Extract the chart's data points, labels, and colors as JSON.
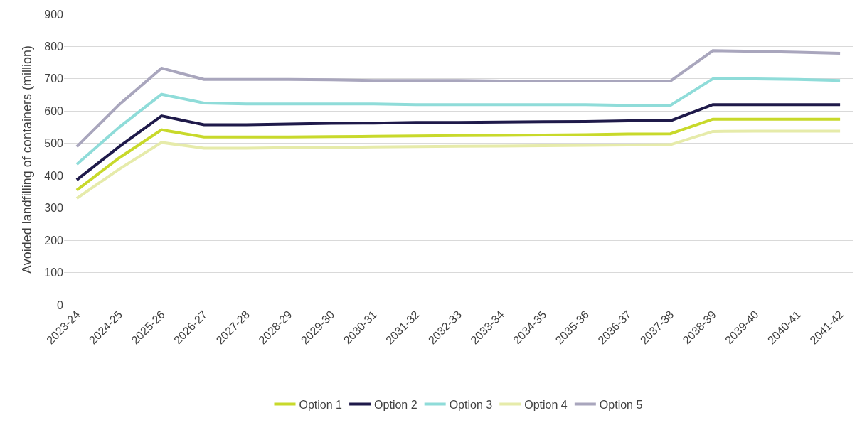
{
  "chart_data": {
    "type": "line",
    "ylabel": "Avoided landfilling of containers (million)",
    "categories": [
      "2023-24",
      "2024-25",
      "2025-26",
      "2026-27",
      "2027-28",
      "2028-29",
      "2029-30",
      "2030-31",
      "2031-32",
      "2032-33",
      "2033-34",
      "2034-35",
      "2035-36",
      "2036-37",
      "2037-38",
      "2038-39",
      "2039-40",
      "2040-41",
      "2041-42"
    ],
    "series": [
      {
        "name": "Option 1",
        "color": "#c8d92b",
        "values": [
          355,
          455,
          542,
          520,
          520,
          520,
          521,
          522,
          523,
          524,
          525,
          526,
          527,
          529,
          530,
          575,
          575,
          575,
          575
        ]
      },
      {
        "name": "Option 2",
        "color": "#1f1a4a",
        "values": [
          387,
          490,
          585,
          558,
          558,
          560,
          562,
          563,
          565,
          565,
          566,
          567,
          568,
          570,
          570,
          620,
          620,
          620,
          620
        ]
      },
      {
        "name": "Option 3",
        "color": "#8fdcd9",
        "values": [
          435,
          550,
          652,
          625,
          622,
          622,
          622,
          622,
          620,
          620,
          620,
          620,
          620,
          618,
          618,
          700,
          700,
          698,
          695
        ]
      },
      {
        "name": "Option 4",
        "color": "#e6ebaa",
        "values": [
          330,
          420,
          503,
          485,
          485,
          487,
          488,
          489,
          490,
          491,
          492,
          493,
          494,
          495,
          496,
          537,
          538,
          538,
          538
        ]
      },
      {
        "name": "Option 5",
        "color": "#a9a6bd",
        "values": [
          490,
          620,
          733,
          698,
          698,
          698,
          697,
          695,
          695,
          695,
          693,
          693,
          693,
          693,
          693,
          787,
          785,
          782,
          779
        ]
      }
    ],
    "ylim": [
      0,
      900
    ],
    "yticks": [
      0,
      100,
      200,
      300,
      400,
      500,
      600,
      700,
      800,
      900
    ],
    "grid": "y",
    "legend": "bottom",
    "marker": "none",
    "line_style": "solid"
  }
}
